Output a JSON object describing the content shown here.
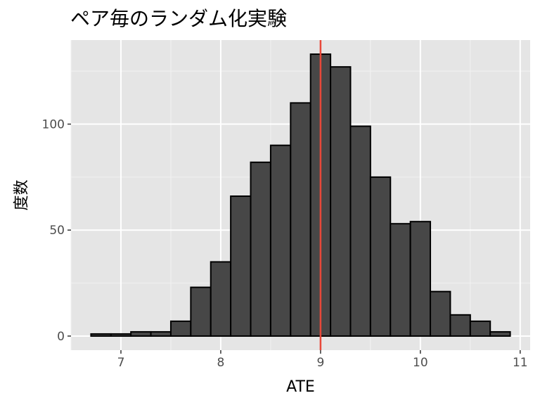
{
  "chart_data": {
    "type": "bar",
    "title": "ペア毎のランダム化実験",
    "xlabel": "ATE",
    "ylabel": "度数",
    "bin_width": 0.2,
    "bins": [
      {
        "x0": 6.7,
        "x1": 6.9,
        "count": 1
      },
      {
        "x0": 6.9,
        "x1": 7.1,
        "count": 1
      },
      {
        "x0": 7.1,
        "x1": 7.3,
        "count": 2
      },
      {
        "x0": 7.3,
        "x1": 7.5,
        "count": 2
      },
      {
        "x0": 7.5,
        "x1": 7.7,
        "count": 7
      },
      {
        "x0": 7.7,
        "x1": 7.9,
        "count": 23
      },
      {
        "x0": 7.9,
        "x1": 8.1,
        "count": 35
      },
      {
        "x0": 8.1,
        "x1": 8.3,
        "count": 66
      },
      {
        "x0": 8.3,
        "x1": 8.5,
        "count": 82
      },
      {
        "x0": 8.5,
        "x1": 8.7,
        "count": 90
      },
      {
        "x0": 8.7,
        "x1": 8.9,
        "count": 110
      },
      {
        "x0": 8.9,
        "x1": 9.1,
        "count": 133
      },
      {
        "x0": 9.1,
        "x1": 9.3,
        "count": 127
      },
      {
        "x0": 9.3,
        "x1": 9.5,
        "count": 99
      },
      {
        "x0": 9.5,
        "x1": 9.7,
        "count": 75
      },
      {
        "x0": 9.7,
        "x1": 9.9,
        "count": 53
      },
      {
        "x0": 9.9,
        "x1": 10.1,
        "count": 54
      },
      {
        "x0": 10.1,
        "x1": 10.3,
        "count": 21
      },
      {
        "x0": 10.3,
        "x1": 10.5,
        "count": 10
      },
      {
        "x0": 10.5,
        "x1": 10.7,
        "count": 7
      },
      {
        "x0": 10.7,
        "x1": 10.9,
        "count": 2
      }
    ],
    "xlim": [
      6.5,
      11.1
    ],
    "ylim": [
      -6.65,
      139.65
    ],
    "x_ticks": [
      7,
      8,
      9,
      10,
      11
    ],
    "y_ticks": [
      0,
      50,
      100
    ],
    "vline": {
      "x": 9,
      "color": "#e8483a"
    },
    "bar_fill": "#474747",
    "bar_edge": "#000000",
    "panel_background": "#e5e5e5",
    "grid": true
  }
}
